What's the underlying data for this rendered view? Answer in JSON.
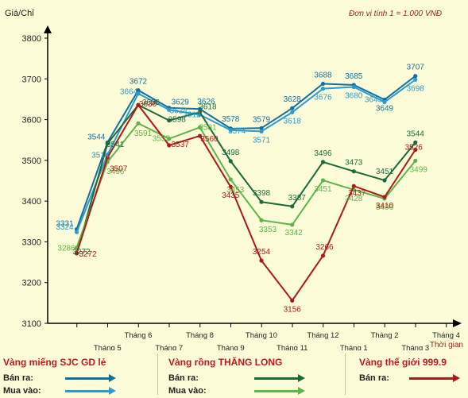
{
  "header": {
    "ylabel": "Giá/Chỉ",
    "unit_note": "Đơn vị tính 1 = 1.000 VNĐ"
  },
  "chart_data": {
    "type": "line",
    "xlabel": "Thời gian",
    "ylabel": "Giá/Chỉ",
    "ylim": [
      3100,
      3800
    ],
    "yticks": [
      3100,
      3200,
      3300,
      3400,
      3500,
      3600,
      3700,
      3800
    ],
    "grid": false,
    "month_labels": [
      {
        "label": "Tháng 5",
        "x": 0.5,
        "row": "lower"
      },
      {
        "label": "Tháng 6",
        "x": 1,
        "row": "upper"
      },
      {
        "label": "Tháng 7",
        "x": 1.5,
        "row": "lower"
      },
      {
        "label": "Tháng 8",
        "x": 2,
        "row": "upper"
      },
      {
        "label": "Tháng 9",
        "x": 2.5,
        "row": "lower"
      },
      {
        "label": "Tháng 10",
        "x": 3,
        "row": "upper"
      },
      {
        "label": "Tháng 11",
        "x": 3.5,
        "row": "lower"
      },
      {
        "label": "Tháng 12",
        "x": 4,
        "row": "upper"
      },
      {
        "label": "Tháng 1",
        "x": 4.5,
        "row": "lower"
      },
      {
        "label": "Tháng 2",
        "x": 5,
        "row": "upper"
      },
      {
        "label": "Tháng 3",
        "x": 5.5,
        "row": "lower"
      },
      {
        "label": "Tháng 4",
        "x": 6,
        "row": "upper"
      }
    ],
    "series": [
      {
        "name": "Vàng miếng SJC GD lẻ - Bán ra",
        "color": "#12709e",
        "points": [
          [
            0,
            3331
          ],
          [
            0.5,
            3544
          ],
          [
            1,
            3672
          ],
          [
            1.5,
            3629
          ],
          [
            2,
            3626
          ],
          [
            2.5,
            3578
          ],
          [
            3,
            3579
          ],
          [
            3.5,
            3628
          ],
          [
            4,
            3688
          ],
          [
            4.5,
            3685
          ],
          [
            5,
            3649
          ],
          [
            5.5,
            3707
          ]
        ],
        "labels": [
          "3331",
          "3544",
          "3672",
          "3629",
          "3626",
          "3578",
          "3579",
          "3628",
          "3688",
          "3685",
          "3649",
          "3707"
        ]
      },
      {
        "name": "Vàng miếng SJC GD lẻ - Mua vào",
        "color": "#2a9ad0",
        "points": [
          [
            0,
            3324
          ],
          [
            0.5,
            3514
          ],
          [
            1,
            3664
          ],
          [
            1.5,
            3624
          ],
          [
            2,
            3612
          ],
          [
            2.5,
            3574
          ],
          [
            3,
            3571
          ],
          [
            3.5,
            3618
          ],
          [
            4,
            3676
          ],
          [
            4.5,
            3680
          ],
          [
            5,
            3643
          ],
          [
            5.5,
            3698
          ]
        ],
        "labels": [
          "3324",
          "3514",
          "3664",
          "3624",
          "3612",
          "3574",
          "3571",
          "3618",
          "3676",
          "3680",
          "3643",
          "3698"
        ]
      },
      {
        "name": "Vàng rồng THĂNG LONG - Bán ra",
        "color": "#1a6a3a",
        "points": [
          [
            0,
            3272
          ],
          [
            0.5,
            3541
          ],
          [
            1,
            3636
          ],
          [
            1.5,
            3598
          ],
          [
            2,
            3618
          ],
          [
            2.5,
            3498
          ],
          [
            3,
            3398
          ],
          [
            3.5,
            3387
          ],
          [
            4,
            3496
          ],
          [
            4.5,
            3473
          ],
          [
            5,
            3451
          ],
          [
            5.5,
            3544
          ]
        ],
        "labels": [
          "3272",
          "3541",
          "3636",
          "3598",
          "3618",
          "3498",
          "3398",
          "3387",
          "3496",
          "3473",
          "3451",
          "3544"
        ]
      },
      {
        "name": "Vàng rồng THĂNG LONG - Mua vào",
        "color": "#5db548",
        "points": [
          [
            0,
            3286
          ],
          [
            0.5,
            3496
          ],
          [
            1,
            3591
          ],
          [
            1.5,
            3553
          ],
          [
            2,
            3581
          ],
          [
            2.5,
            3453
          ],
          [
            3,
            3353
          ],
          [
            3.5,
            3342
          ],
          [
            4,
            3451
          ],
          [
            4.5,
            3428
          ],
          [
            5,
            3406
          ],
          [
            5.5,
            3499
          ]
        ],
        "labels": [
          "3286",
          "3496",
          "3591",
          "3553",
          "3581",
          "3453",
          "3353",
          "3342",
          "3451",
          "3428",
          "3406",
          "3499"
        ]
      },
      {
        "name": "Vàng thế giới 999.9 - Bán ra",
        "color": "#b01818",
        "points": [
          [
            0,
            3272
          ],
          [
            0.5,
            3507
          ],
          [
            1,
            3636
          ],
          [
            1.5,
            3537
          ],
          [
            2,
            3560
          ],
          [
            2.5,
            3435
          ],
          [
            3,
            3254
          ],
          [
            3.5,
            3156
          ],
          [
            4,
            3266
          ],
          [
            4.5,
            3437
          ],
          [
            5,
            3410
          ],
          [
            5.5,
            3526
          ]
        ],
        "labels": [
          "3272",
          "3507",
          "3636",
          "3537",
          "3560",
          "3435",
          "3254",
          "3156",
          "3266",
          "3437",
          "3410",
          "3526"
        ]
      }
    ]
  },
  "legend": {
    "groups": [
      {
        "title": "Vàng miếng SJC GD lẻ",
        "rows": [
          {
            "label": "Bán ra:",
            "color": "#12709e"
          },
          {
            "label": "Mua vào:",
            "color": "#2a9ad0"
          }
        ]
      },
      {
        "title": "Vàng rồng THĂNG LONG",
        "rows": [
          {
            "label": "Bán ra:",
            "color": "#1a6a3a"
          },
          {
            "label": "Mua vào:",
            "color": "#5db548"
          }
        ]
      },
      {
        "title": "Vàng thế giới 999.9",
        "rows": [
          {
            "label": "Bán ra:",
            "color": "#b01818"
          }
        ]
      }
    ]
  }
}
